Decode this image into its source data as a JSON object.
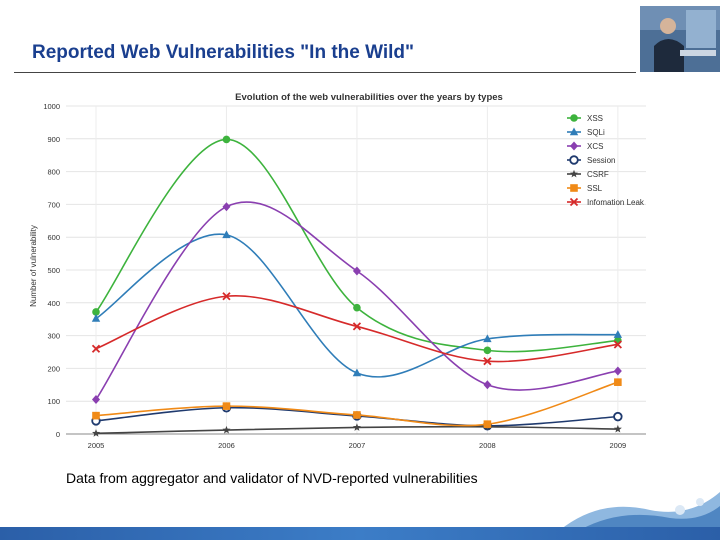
{
  "slide": {
    "title": "Reported Web Vulnerabilities \"In the Wild\"",
    "caption": "Data from aggregator and validator of  NVD-reported vulnerabilities"
  },
  "chart_data": {
    "type": "line",
    "title": "Evolution of the web vulnerabilities over the years by types",
    "xlabel": "",
    "ylabel": "Number of vulnerability",
    "categories": [
      "2005",
      "2006",
      "2007",
      "2008",
      "2009"
    ],
    "ylim": [
      0,
      1000
    ],
    "yticks": [
      0,
      100,
      200,
      300,
      400,
      500,
      600,
      700,
      800,
      900,
      1000
    ],
    "grid": true,
    "legend_position": "top-right",
    "series": [
      {
        "name": "XSS",
        "color": "#3db33d",
        "marker": "circle",
        "values": [
          372,
          898,
          385,
          255,
          285
        ]
      },
      {
        "name": "SQLi",
        "color": "#2f7db8",
        "marker": "triangle",
        "values": [
          352,
          607,
          186,
          290,
          303
        ]
      },
      {
        "name": "XCS",
        "color": "#8a3fb0",
        "marker": "diamond",
        "values": [
          105,
          693,
          497,
          150,
          192
        ]
      },
      {
        "name": "Session",
        "color": "#1f3a6e",
        "marker": "open-circle",
        "values": [
          40,
          80,
          55,
          25,
          53
        ]
      },
      {
        "name": "CSRF",
        "color": "#444444",
        "marker": "star",
        "values": [
          2,
          12,
          20,
          22,
          15
        ]
      },
      {
        "name": "SSL",
        "color": "#f08a17",
        "marker": "square",
        "values": [
          56,
          85,
          58,
          30,
          158
        ]
      },
      {
        "name": "Infomation Leak",
        "color": "#d62a2a",
        "marker": "x",
        "values": [
          260,
          420,
          328,
          222,
          273
        ]
      }
    ]
  }
}
